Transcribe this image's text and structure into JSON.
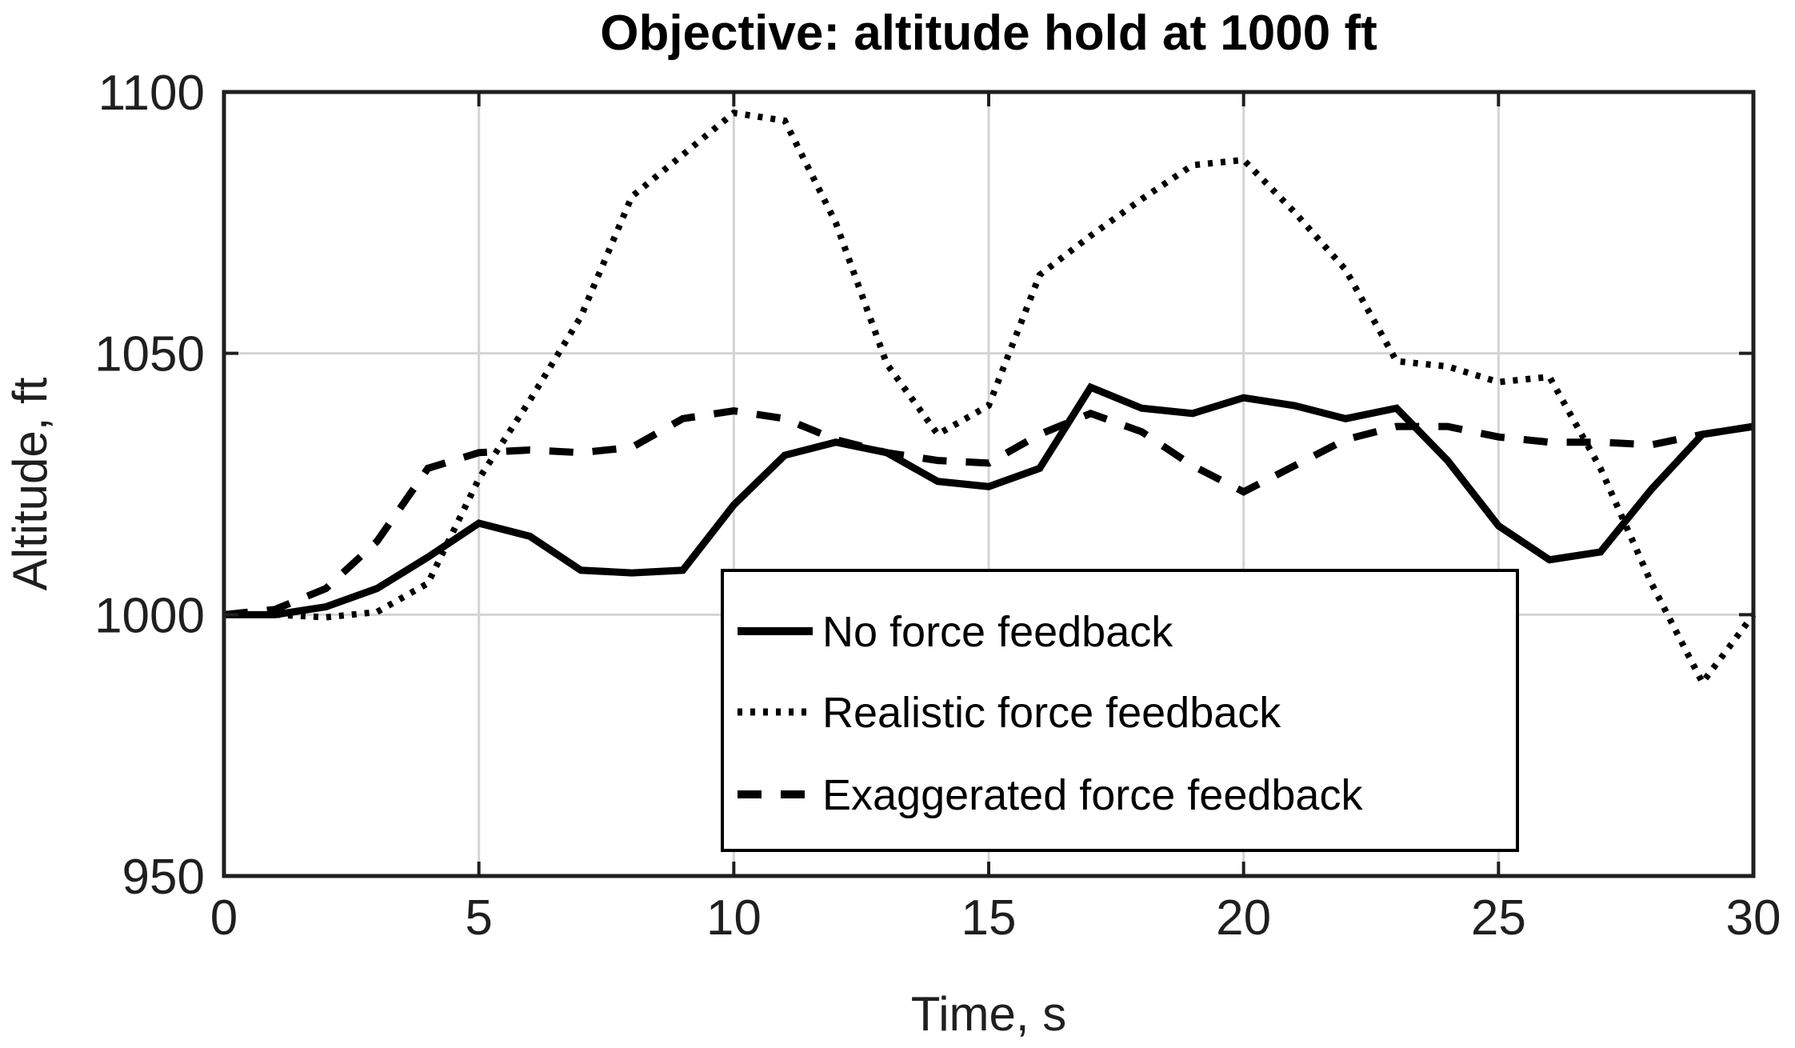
{
  "chart_data": {
    "type": "line",
    "title": "Objective: altitude hold at 1000 ft",
    "xlabel": "Time, s",
    "ylabel": "Altitude, ft",
    "xlim": [
      0,
      30
    ],
    "ylim": [
      950,
      1100
    ],
    "xticks": [
      0,
      5,
      10,
      15,
      20,
      25,
      30
    ],
    "yticks": [
      950,
      1000,
      1050,
      1100
    ],
    "grid": true,
    "legend_position": "inside-lower-center",
    "x": [
      0,
      1,
      2,
      3,
      4,
      5,
      6,
      7,
      8,
      9,
      10,
      11,
      12,
      13,
      14,
      15,
      16,
      17,
      18,
      19,
      20,
      21,
      22,
      23,
      24,
      25,
      26,
      27,
      28,
      29,
      30
    ],
    "series": [
      {
        "name": "No force feedback",
        "style": "solid",
        "values": [
          1000,
          1000,
          1001.5,
          1005,
          1011,
          1017.5,
          1015,
          1008.5,
          1008,
          1008.5,
          1021,
          1030.5,
          1033,
          1031,
          1025.5,
          1024.5,
          1028,
          1043.5,
          1039.5,
          1038.5,
          1041.5,
          1040,
          1037.5,
          1039.5,
          1029.5,
          1017,
          1010.5,
          1012,
          1024,
          1034.5,
          1036
        ]
      },
      {
        "name": "Realistic force feedback",
        "style": "dotted",
        "values": [
          1000,
          1000,
          999.5,
          1000.5,
          1006,
          1026,
          1041,
          1057,
          1080,
          1088,
          1096,
          1094.5,
          1075,
          1048,
          1034.5,
          1040,
          1065,
          1072.5,
          1079.5,
          1086,
          1087,
          1077,
          1066,
          1048.5,
          1047.5,
          1044.5,
          1045.5,
          1028,
          1006,
          987,
          1000
        ]
      },
      {
        "name": "Exaggerated force feedback",
        "style": "dashed",
        "values": [
          1000,
          1001,
          1005,
          1014,
          1028,
          1031,
          1031.5,
          1031,
          1032,
          1037.5,
          1039,
          1037.5,
          1033.5,
          1031,
          1029.5,
          1029,
          1034.5,
          1038.5,
          1035,
          1028.5,
          1023.5,
          1028.5,
          1033.5,
          1036,
          1036,
          1034,
          1033,
          1033,
          1032.5,
          1034.5,
          1036
        ]
      }
    ]
  },
  "colors": {
    "line": "#000000",
    "axis": "#1f1f1f",
    "grid": "#d4d4d4",
    "background": "#ffffff"
  }
}
